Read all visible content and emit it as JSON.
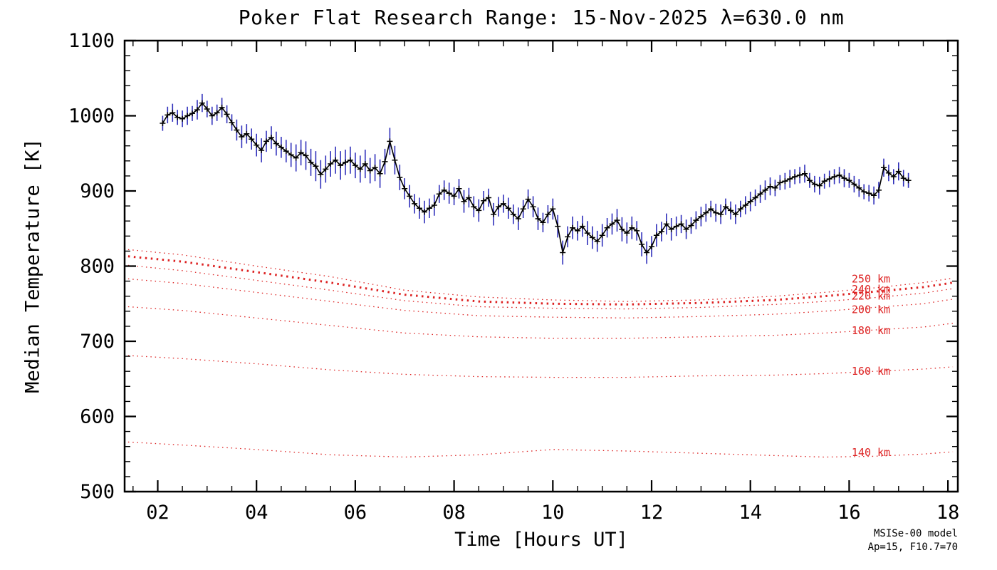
{
  "page": {
    "background": "#ffffff"
  },
  "chart_data": {
    "type": "line",
    "title": "Poker Flat Research Range: 15-Nov-2025 λ=630.0 nm",
    "xlabel": "Time [Hours UT]",
    "ylabel": "Median Temperature [K]",
    "footer": [
      "MSISe-00 model",
      "Ap=15, F10.7=70"
    ],
    "xlim": [
      1.33,
      18.2
    ],
    "ylim": [
      500,
      1100
    ],
    "grid": false,
    "legend": "none",
    "x_minor_step": 0.5,
    "y_minor_step": 20,
    "xticks": [
      {
        "v": 2,
        "label": "02"
      },
      {
        "v": 4,
        "label": "04"
      },
      {
        "v": 6,
        "label": "06"
      },
      {
        "v": 8,
        "label": "08"
      },
      {
        "v": 10,
        "label": "10"
      },
      {
        "v": 12,
        "label": "12"
      },
      {
        "v": 14,
        "label": "14"
      },
      {
        "v": 16,
        "label": "16"
      },
      {
        "v": 18,
        "label": "18"
      }
    ],
    "yticks": [
      {
        "v": 500,
        "label": "500"
      },
      {
        "v": 600,
        "label": "600"
      },
      {
        "v": 700,
        "label": "700"
      },
      {
        "v": 800,
        "label": "800"
      },
      {
        "v": 900,
        "label": "900"
      },
      {
        "v": 1000,
        "label": "1000"
      },
      {
        "v": 1100,
        "label": "1100"
      }
    ],
    "colors": {
      "data": "#000000",
      "error": "#3030bb",
      "model": "#dd2222"
    },
    "series": [
      {
        "name": "median_temperature",
        "marker": "plus",
        "points": [
          [
            2.1,
            990,
            10
          ],
          [
            2.2,
            1001,
            11
          ],
          [
            2.3,
            1004,
            12
          ],
          [
            2.4,
            998,
            10
          ],
          [
            2.5,
            996,
            11
          ],
          [
            2.6,
            1000,
            12
          ],
          [
            2.7,
            1003,
            10
          ],
          [
            2.8,
            1008,
            13
          ],
          [
            2.9,
            1017,
            12
          ],
          [
            3.0,
            1009,
            11
          ],
          [
            3.1,
            1000,
            12
          ],
          [
            3.2,
            1004,
            11
          ],
          [
            3.3,
            1011,
            13
          ],
          [
            3.4,
            1002,
            12
          ],
          [
            3.5,
            991,
            11
          ],
          [
            3.6,
            981,
            14
          ],
          [
            3.7,
            972,
            15
          ],
          [
            3.8,
            976,
            13
          ],
          [
            3.9,
            969,
            14
          ],
          [
            4.0,
            961,
            15
          ],
          [
            4.1,
            954,
            16
          ],
          [
            4.2,
            966,
            14
          ],
          [
            4.3,
            971,
            15
          ],
          [
            4.4,
            963,
            16
          ],
          [
            4.5,
            958,
            14
          ],
          [
            4.6,
            953,
            15
          ],
          [
            4.7,
            948,
            16
          ],
          [
            4.8,
            944,
            18
          ],
          [
            4.9,
            951,
            17
          ],
          [
            5.0,
            947,
            19
          ],
          [
            5.1,
            938,
            18
          ],
          [
            5.2,
            933,
            20
          ],
          [
            5.3,
            922,
            19
          ],
          [
            5.4,
            929,
            18
          ],
          [
            5.5,
            936,
            17
          ],
          [
            5.6,
            941,
            18
          ],
          [
            5.7,
            934,
            19
          ],
          [
            5.8,
            938,
            17
          ],
          [
            5.9,
            941,
            18
          ],
          [
            6.0,
            934,
            17
          ],
          [
            6.1,
            929,
            18
          ],
          [
            6.2,
            936,
            19
          ],
          [
            6.3,
            927,
            17
          ],
          [
            6.4,
            931,
            18
          ],
          [
            6.5,
            923,
            19
          ],
          [
            6.6,
            939,
            17
          ],
          [
            6.7,
            966,
            18
          ],
          [
            6.8,
            941,
            19
          ],
          [
            6.9,
            918,
            17
          ],
          [
            7.0,
            903,
            14
          ],
          [
            7.1,
            893,
            15
          ],
          [
            7.2,
            883,
            13
          ],
          [
            7.3,
            877,
            14
          ],
          [
            7.4,
            872,
            15
          ],
          [
            7.5,
            877,
            13
          ],
          [
            7.6,
            881,
            14
          ],
          [
            7.7,
            896,
            12
          ],
          [
            7.8,
            901,
            13
          ],
          [
            7.9,
            897,
            14
          ],
          [
            8.0,
            893,
            12
          ],
          [
            8.1,
            903,
            13
          ],
          [
            8.2,
            886,
            15
          ],
          [
            8.3,
            891,
            13
          ],
          [
            8.4,
            879,
            14
          ],
          [
            8.5,
            874,
            15
          ],
          [
            8.6,
            887,
            13
          ],
          [
            8.7,
            891,
            12
          ],
          [
            8.8,
            869,
            15
          ],
          [
            8.9,
            879,
            13
          ],
          [
            9.0,
            883,
            12
          ],
          [
            9.1,
            877,
            14
          ],
          [
            9.2,
            869,
            13
          ],
          [
            9.3,
            863,
            15
          ],
          [
            9.4,
            876,
            12
          ],
          [
            9.5,
            889,
            13
          ],
          [
            9.6,
            879,
            14
          ],
          [
            9.7,
            863,
            15
          ],
          [
            9.8,
            858,
            13
          ],
          [
            9.9,
            869,
            12
          ],
          [
            10.0,
            876,
            14
          ],
          [
            10.1,
            853,
            15
          ],
          [
            10.2,
            818,
            16
          ],
          [
            10.3,
            839,
            14
          ],
          [
            10.4,
            851,
            15
          ],
          [
            10.5,
            847,
            13
          ],
          [
            10.6,
            853,
            14
          ],
          [
            10.7,
            844,
            16
          ],
          [
            10.8,
            838,
            15
          ],
          [
            10.9,
            833,
            14
          ],
          [
            11.0,
            841,
            15
          ],
          [
            11.1,
            851,
            13
          ],
          [
            11.2,
            856,
            14
          ],
          [
            11.3,
            861,
            15
          ],
          [
            11.4,
            849,
            16
          ],
          [
            11.5,
            844,
            14
          ],
          [
            11.6,
            851,
            15
          ],
          [
            11.7,
            847,
            13
          ],
          [
            11.8,
            829,
            16
          ],
          [
            11.9,
            818,
            15
          ],
          [
            12.0,
            826,
            14
          ],
          [
            12.1,
            841,
            15
          ],
          [
            12.2,
            846,
            13
          ],
          [
            12.3,
            856,
            14
          ],
          [
            12.4,
            849,
            15
          ],
          [
            12.5,
            853,
            13
          ],
          [
            12.6,
            856,
            12
          ],
          [
            12.7,
            849,
            13
          ],
          [
            12.8,
            854,
            11
          ],
          [
            12.9,
            861,
            12
          ],
          [
            13.0,
            866,
            13
          ],
          [
            13.1,
            871,
            12
          ],
          [
            13.2,
            876,
            11
          ],
          [
            13.3,
            871,
            12
          ],
          [
            13.4,
            869,
            13
          ],
          [
            13.5,
            879,
            11
          ],
          [
            13.6,
            874,
            12
          ],
          [
            13.7,
            869,
            13
          ],
          [
            13.8,
            876,
            11
          ],
          [
            13.9,
            881,
            12
          ],
          [
            14.0,
            886,
            13
          ],
          [
            14.1,
            891,
            11
          ],
          [
            14.2,
            896,
            12
          ],
          [
            14.3,
            901,
            13
          ],
          [
            14.4,
            906,
            12
          ],
          [
            14.5,
            904,
            11
          ],
          [
            14.6,
            911,
            10
          ],
          [
            14.7,
            913,
            11
          ],
          [
            14.8,
            916,
            12
          ],
          [
            14.9,
            919,
            10
          ],
          [
            15.0,
            921,
            11
          ],
          [
            15.1,
            923,
            12
          ],
          [
            15.2,
            914,
            10
          ],
          [
            15.3,
            909,
            11
          ],
          [
            15.4,
            907,
            12
          ],
          [
            15.5,
            913,
            10
          ],
          [
            15.6,
            916,
            11
          ],
          [
            15.7,
            919,
            10
          ],
          [
            15.8,
            921,
            11
          ],
          [
            15.9,
            917,
            12
          ],
          [
            16.0,
            914,
            10
          ],
          [
            16.1,
            909,
            11
          ],
          [
            16.2,
            904,
            12
          ],
          [
            16.3,
            899,
            10
          ],
          [
            16.4,
            897,
            11
          ],
          [
            16.5,
            894,
            12
          ],
          [
            16.6,
            901,
            11
          ],
          [
            16.7,
            931,
            12
          ],
          [
            16.8,
            924,
            11
          ],
          [
            16.9,
            919,
            10
          ],
          [
            17.0,
            926,
            12
          ],
          [
            17.1,
            917,
            11
          ],
          [
            17.2,
            914,
            10
          ]
        ]
      }
    ],
    "model_x": [
      1.4,
      2.5,
      4,
      5.5,
      7,
      8.5,
      10,
      11.5,
      13,
      14.5,
      15.5,
      16.5,
      17.5,
      18.1
    ],
    "model_curves": [
      {
        "alt_km": 250,
        "emphasis": false,
        "y": [
          822,
          815,
          800,
          786,
          768,
          759,
          755,
          753,
          755,
          760,
          765,
          771,
          778,
          784
        ],
        "label": {
          "text": "250 km",
          "x": 16.05,
          "y": 783
        }
      },
      {
        "alt_km": 240,
        "emphasis": true,
        "y": [
          813,
          806,
          792,
          778,
          762,
          753,
          750,
          749,
          751,
          755,
          760,
          766,
          772,
          778
        ],
        "label": {
          "text": "240 km",
          "x": 16.05,
          "y": 769
        }
      },
      {
        "alt_km": 220,
        "emphasis": false,
        "y": [
          801,
          794,
          781,
          768,
          754,
          746,
          744,
          743,
          745,
          749,
          753,
          758,
          764,
          770
        ],
        "label": {
          "text": "220 km",
          "x": 16.05,
          "y": 760
        }
      },
      {
        "alt_km": 200,
        "emphasis": false,
        "y": [
          783,
          777,
          765,
          753,
          741,
          734,
          732,
          731,
          733,
          736,
          740,
          745,
          750,
          756
        ],
        "label": {
          "text": "200 km",
          "x": 16.05,
          "y": 742
        }
      },
      {
        "alt_km": 180,
        "emphasis": false,
        "y": [
          746,
          741,
          731,
          721,
          711,
          706,
          704,
          704,
          706,
          708,
          711,
          715,
          719,
          724
        ],
        "label": {
          "text": "180 km",
          "x": 16.05,
          "y": 714
        }
      },
      {
        "alt_km": 160,
        "emphasis": false,
        "y": [
          681,
          677,
          670,
          662,
          656,
          653,
          652,
          652,
          654,
          655,
          657,
          660,
          663,
          666
        ],
        "label": {
          "text": "160 km",
          "x": 16.05,
          "y": 660
        }
      },
      {
        "alt_km": 140,
        "emphasis": false,
        "y": [
          566,
          562,
          556,
          549,
          546,
          549,
          556,
          554,
          551,
          548,
          546,
          547,
          550,
          553
        ],
        "label": {
          "text": "140 km",
          "x": 16.05,
          "y": 552
        }
      }
    ]
  }
}
